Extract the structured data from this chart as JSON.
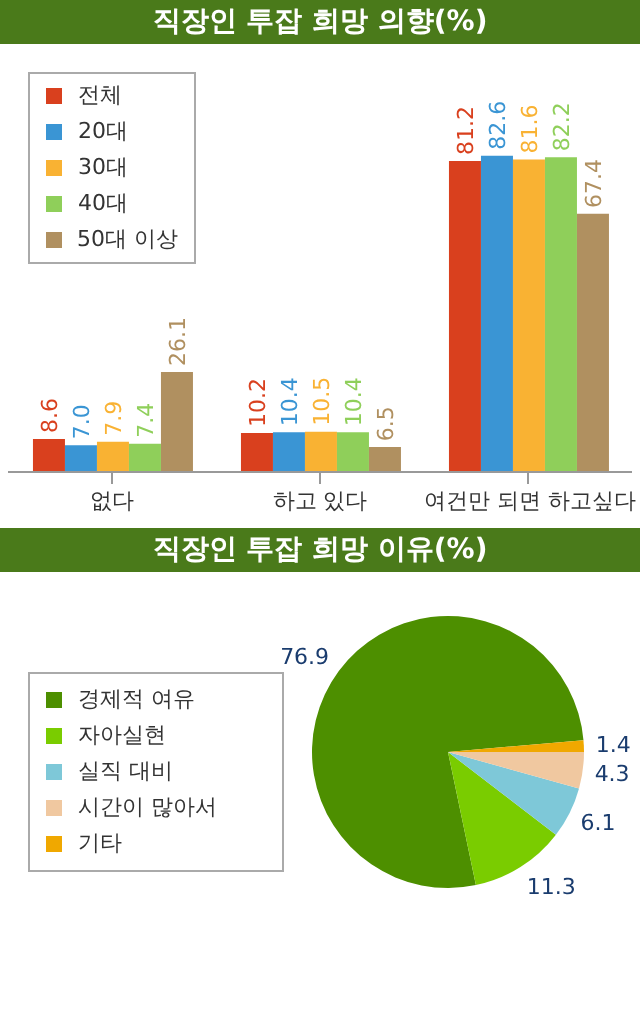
{
  "chart_data": [
    {
      "type": "bar",
      "title": "직장인 투잡 희망 의향(%)",
      "categories": [
        "없다",
        "하고 있다",
        "여건만 되면 하고싶다"
      ],
      "series": [
        {
          "name": "전체",
          "color": "#d9401e",
          "values": [
            8.6,
            10.2,
            81.2
          ],
          "value_labels": [
            "8.6",
            "10.2",
            "81.2"
          ]
        },
        {
          "name": "20대",
          "color": "#3a95d4",
          "values": [
            7.0,
            10.4,
            82.6
          ],
          "value_labels": [
            "7.0",
            "10.4",
            "82.6"
          ]
        },
        {
          "name": "30대",
          "color": "#f9b233",
          "values": [
            7.9,
            10.5,
            81.6
          ],
          "value_labels": [
            "7.9",
            "10.5",
            "81.6"
          ]
        },
        {
          "name": "40대",
          "color": "#8fcf5a",
          "values": [
            7.4,
            10.4,
            82.2
          ],
          "value_labels": [
            "7.4",
            "10.4",
            "82.2"
          ]
        },
        {
          "name": "50대 이상",
          "color": "#b09060",
          "values": [
            26.1,
            6.5,
            67.4
          ],
          "value_labels": [
            "26.1",
            "6.5",
            "67.4"
          ]
        }
      ],
      "legend": "top left",
      "tick_labels": "x"
    },
    {
      "type": "pie",
      "title": "직장인 투잡 희망 이유(%)",
      "categories": [
        "경제적 여유",
        "자아실현",
        "실직 대비",
        "시간이 많아서",
        "기타"
      ],
      "values": [
        76.9,
        11.3,
        6.1,
        4.3,
        1.4
      ],
      "colors": [
        "#4d8f00",
        "#7acc00",
        "#7ec8d8",
        "#f0c8a0",
        "#f0a800"
      ],
      "data_labels": true,
      "legend": "left"
    }
  ]
}
